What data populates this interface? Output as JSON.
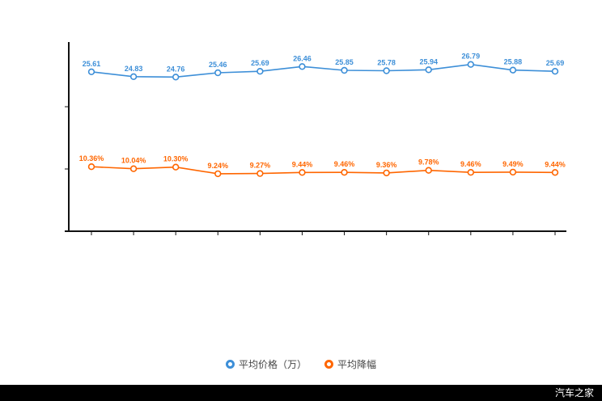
{
  "chart_data": {
    "type": "line",
    "title": "",
    "xlabel": "",
    "ylabel": "",
    "ylim": [
      0,
      30
    ],
    "grid": false,
    "legend_position": "bottom",
    "series": [
      {
        "name": "平均价格（万）",
        "color": "#3d8fd8",
        "label_suffix": "",
        "values": [
          25.61,
          24.83,
          24.76,
          25.46,
          25.69,
          26.46,
          25.85,
          25.78,
          25.94,
          26.79,
          25.88,
          25.69
        ]
      },
      {
        "name": "平均降幅",
        "color": "#ff6600",
        "label_suffix": "%",
        "values": [
          10.36,
          10.04,
          10.3,
          9.24,
          9.27,
          9.44,
          9.46,
          9.36,
          9.78,
          9.46,
          9.49,
          9.44
        ]
      }
    ],
    "axis_color": "#111111"
  },
  "legend": {
    "items": [
      {
        "label": "平均价格（万）"
      },
      {
        "label": "平均降幅"
      }
    ]
  },
  "footer": {
    "watermark": "汽车之家"
  }
}
